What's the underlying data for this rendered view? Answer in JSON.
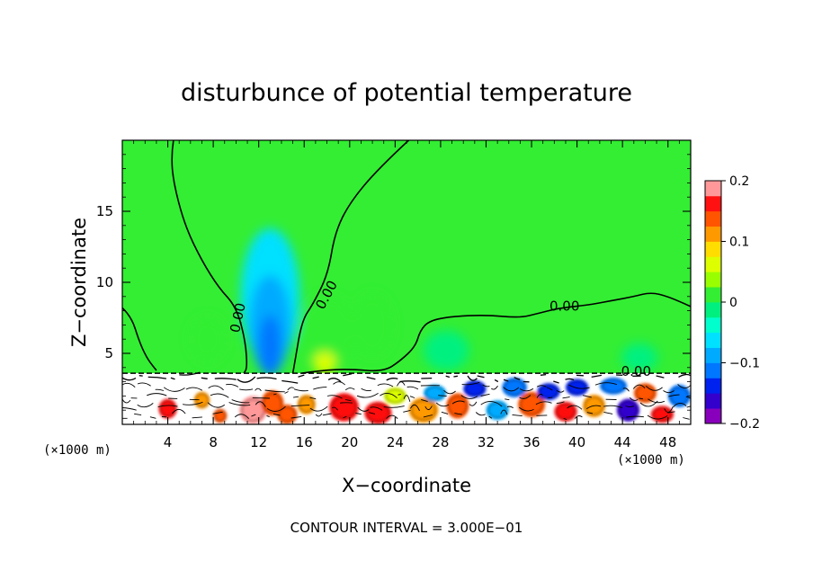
{
  "chart_data": {
    "type": "heatmap",
    "title": "disturbunce of potential temperature",
    "xlabel": "X−coordinate",
    "ylabel": "Z−coordinate",
    "x_unit": "(×1000 m)",
    "xlim": [
      0,
      50
    ],
    "ylim": [
      0,
      20
    ],
    "xticks": [
      4,
      8,
      12,
      16,
      20,
      24,
      28,
      32,
      36,
      40,
      44,
      48
    ],
    "yticks": [
      5,
      10,
      15
    ],
    "colorbar": {
      "range": [
        -0.2,
        0.2
      ],
      "tick_values": [
        -0.2,
        -0.1,
        0,
        0.1,
        0.2
      ],
      "tick_labels": [
        "−0.2",
        "−0.1",
        "0",
        "0.1",
        "0.2"
      ],
      "levels": 16,
      "colors": [
        "#8800bb",
        "#3300cc",
        "#0022ee",
        "#0077ff",
        "#00aaff",
        "#00e0ff",
        "#00ffcc",
        "#00f080",
        "#33ee33",
        "#99ff00",
        "#ddff00",
        "#ffdd00",
        "#ff9900",
        "#ff5500",
        "#ff1111",
        "#ff9999"
      ]
    },
    "background_level": 0,
    "contour_interval": "3.000E−01",
    "contour_labels": [
      {
        "text": "0.00",
        "x": 10.2,
        "z": 7.5
      },
      {
        "text": "0.00",
        "x": 18.0,
        "z": 9.1
      },
      {
        "text": "0.00",
        "x": 38.9,
        "z": 8.3
      },
      {
        "text": "0.00",
        "x": 45.2,
        "z": 3.7
      }
    ],
    "zero_contours": [
      [
        [
          0,
          8.2
        ],
        [
          0.8,
          7.6
        ],
        [
          1.5,
          5.8
        ],
        [
          2.2,
          4.6
        ],
        [
          3.0,
          3.8
        ]
      ],
      [
        [
          4.5,
          20
        ],
        [
          4.3,
          19.0
        ],
        [
          4.5,
          17.0
        ],
        [
          5.5,
          14.0
        ],
        [
          7.0,
          11.5
        ],
        [
          8.5,
          9.6
        ],
        [
          10.0,
          8.3
        ],
        [
          10.8,
          6.0
        ],
        [
          11.0,
          4.0
        ],
        [
          10.7,
          3.6
        ]
      ],
      [
        [
          25.2,
          20
        ],
        [
          22.5,
          18.0
        ],
        [
          20.0,
          15.6
        ],
        [
          18.7,
          13.5
        ],
        [
          18.1,
          10.6
        ],
        [
          16.8,
          8.5
        ],
        [
          15.8,
          7.3
        ],
        [
          15.2,
          4.5
        ],
        [
          15.0,
          3.6
        ]
      ],
      [
        [
          15.8,
          3.6
        ],
        [
          17.5,
          3.8
        ],
        [
          20.0,
          3.9
        ],
        [
          23.0,
          3.7
        ],
        [
          24.5,
          4.5
        ],
        [
          25.8,
          5.5
        ],
        [
          26.2,
          6.6
        ],
        [
          27.0,
          7.3
        ],
        [
          29.0,
          7.6
        ],
        [
          32.0,
          7.7
        ],
        [
          35.0,
          7.5
        ],
        [
          36.5,
          7.8
        ],
        [
          38.5,
          8.2
        ],
        [
          41.0,
          8.4
        ],
        [
          43.0,
          8.7
        ],
        [
          45.0,
          9.0
        ],
        [
          46.5,
          9.3
        ],
        [
          48.0,
          9.0
        ],
        [
          50.0,
          8.3
        ]
      ]
    ],
    "anomalies": [
      {
        "x": 13.0,
        "z": 9.0,
        "rx": 2.6,
        "rz": 4.8,
        "value": -0.06
      },
      {
        "x": 13.0,
        "z": 7.0,
        "rx": 1.8,
        "rz": 3.5,
        "value": -0.09
      },
      {
        "x": 13.0,
        "z": 5.5,
        "rx": 1.0,
        "rz": 2.2,
        "value": -0.12
      },
      {
        "x": 7.5,
        "z": 6.0,
        "rx": 1.6,
        "rz": 1.6,
        "value": 0.02
      },
      {
        "x": 18.0,
        "z": 6.5,
        "rx": 2.4,
        "rz": 2.6,
        "value": 0.02
      },
      {
        "x": 17.8,
        "z": 4.3,
        "rx": 1.0,
        "rz": 0.8,
        "value": 0.06
      },
      {
        "x": 22.0,
        "z": 7.0,
        "rx": 1.8,
        "rz": 2.2,
        "value": 0.015
      },
      {
        "x": 28.5,
        "z": 5.2,
        "rx": 2.0,
        "rz": 1.4,
        "value": -0.012
      },
      {
        "x": 45.5,
        "z": 4.7,
        "rx": 1.6,
        "rz": 1.0,
        "value": -0.012
      }
    ],
    "boundary_layer_top_z": 3.6,
    "boundary_layer_blobs": [
      {
        "x": 11.5,
        "z": 1.0,
        "rx": 1.2,
        "rz": 1.0,
        "value": 0.18
      },
      {
        "x": 13.2,
        "z": 1.5,
        "rx": 1.0,
        "rz": 0.9,
        "value": 0.13
      },
      {
        "x": 14.5,
        "z": 0.7,
        "rx": 0.9,
        "rz": 0.7,
        "value": 0.15
      },
      {
        "x": 16.2,
        "z": 1.4,
        "rx": 0.8,
        "rz": 0.7,
        "value": 0.1
      },
      {
        "x": 19.5,
        "z": 1.2,
        "rx": 1.3,
        "rz": 1.0,
        "value": 0.17
      },
      {
        "x": 22.5,
        "z": 0.8,
        "rx": 1.2,
        "rz": 0.8,
        "value": 0.16
      },
      {
        "x": 24.0,
        "z": 2.0,
        "rx": 1.0,
        "rz": 0.6,
        "value": 0.05
      },
      {
        "x": 26.5,
        "z": 1.0,
        "rx": 1.3,
        "rz": 0.9,
        "value": 0.12
      },
      {
        "x": 27.5,
        "z": 2.2,
        "rx": 1.0,
        "rz": 0.6,
        "value": -0.1
      },
      {
        "x": 29.5,
        "z": 1.3,
        "rx": 1.0,
        "rz": 0.9,
        "value": 0.15
      },
      {
        "x": 31.0,
        "z": 2.5,
        "rx": 1.0,
        "rz": 0.6,
        "value": -0.14
      },
      {
        "x": 33.0,
        "z": 1.0,
        "rx": 1.0,
        "rz": 0.7,
        "value": -0.09
      },
      {
        "x": 34.5,
        "z": 2.6,
        "rx": 1.1,
        "rz": 0.7,
        "value": -0.12
      },
      {
        "x": 36.0,
        "z": 1.4,
        "rx": 1.2,
        "rz": 0.9,
        "value": 0.13
      },
      {
        "x": 37.5,
        "z": 2.3,
        "rx": 1.0,
        "rz": 0.6,
        "value": -0.15
      },
      {
        "x": 39.0,
        "z": 0.9,
        "rx": 1.0,
        "rz": 0.7,
        "value": 0.17
      },
      {
        "x": 40.0,
        "z": 2.6,
        "rx": 1.0,
        "rz": 0.6,
        "value": -0.13
      },
      {
        "x": 41.5,
        "z": 1.3,
        "rx": 1.0,
        "rz": 0.8,
        "value": 0.1
      },
      {
        "x": 43.2,
        "z": 2.7,
        "rx": 1.2,
        "rz": 0.6,
        "value": -0.11
      },
      {
        "x": 44.5,
        "z": 1.0,
        "rx": 1.0,
        "rz": 0.8,
        "value": -0.16
      },
      {
        "x": 46.0,
        "z": 2.2,
        "rx": 1.0,
        "rz": 0.7,
        "value": 0.14
      },
      {
        "x": 47.5,
        "z": 0.7,
        "rx": 1.0,
        "rz": 0.6,
        "value": 0.17
      },
      {
        "x": 49.0,
        "z": 2.0,
        "rx": 1.0,
        "rz": 0.8,
        "value": -0.12
      },
      {
        "x": 4.0,
        "z": 1.1,
        "rx": 0.8,
        "rz": 0.7,
        "value": 0.16
      },
      {
        "x": 7.0,
        "z": 1.7,
        "rx": 0.7,
        "rz": 0.6,
        "value": 0.12
      },
      {
        "x": 8.6,
        "z": 0.6,
        "rx": 0.6,
        "rz": 0.5,
        "value": 0.15
      }
    ]
  },
  "footer": {
    "contour_interval_text": "CONTOUR INTERVAL = 3.000E−01"
  }
}
